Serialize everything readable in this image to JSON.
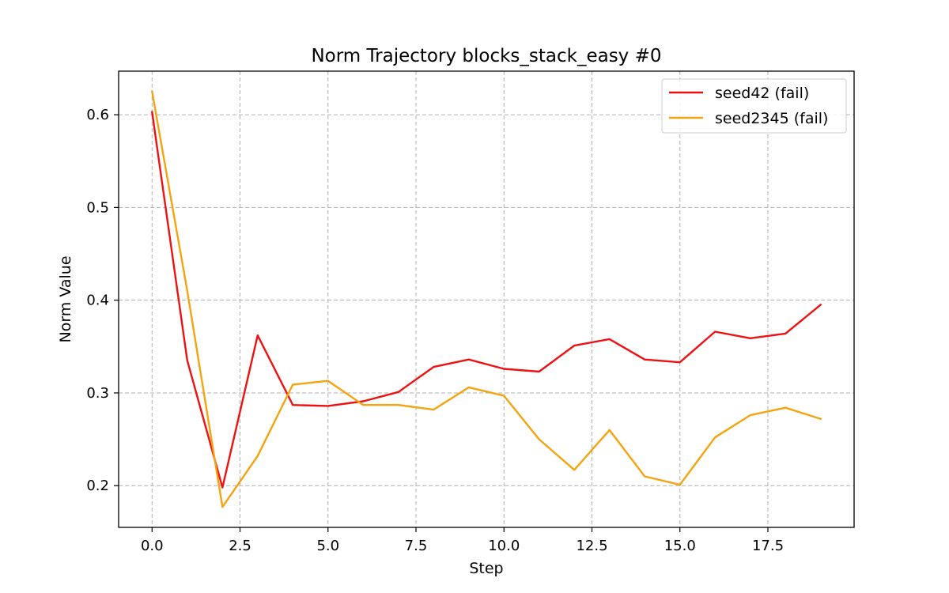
{
  "chart_data": {
    "type": "line",
    "title": "Norm Trajectory blocks_stack_easy #0",
    "xlabel": "Step",
    "ylabel": "Norm Value",
    "xlim": [
      -0.95,
      19.95
    ],
    "ylim": [
      0.155,
      0.647
    ],
    "xticks": [
      0.0,
      2.5,
      5.0,
      7.5,
      10.0,
      12.5,
      15.0,
      17.5
    ],
    "xtick_labels": [
      "0.0",
      "2.5",
      "5.0",
      "7.5",
      "10.0",
      "12.5",
      "15.0",
      "17.5"
    ],
    "yticks": [
      0.2,
      0.3,
      0.4,
      0.5,
      0.6
    ],
    "ytick_labels": [
      "0.2",
      "0.3",
      "0.4",
      "0.5",
      "0.6"
    ],
    "grid": true,
    "legend_position": "top-right",
    "x": [
      0,
      1,
      2,
      3,
      4,
      5,
      6,
      7,
      8,
      9,
      10,
      11,
      12,
      13,
      14,
      15,
      16,
      17,
      18,
      19
    ],
    "series": [
      {
        "name": "seed42 (fail)",
        "color": "#ee1111",
        "values": [
          0.603,
          0.335,
          0.198,
          0.362,
          0.287,
          0.286,
          0.291,
          0.301,
          0.328,
          0.336,
          0.326,
          0.323,
          0.351,
          0.358,
          0.336,
          0.333,
          0.366,
          0.359,
          0.364,
          0.395
        ]
      },
      {
        "name": "seed2345 (fail)",
        "color": "#f5a30f",
        "values": [
          0.625,
          0.41,
          0.177,
          0.232,
          0.309,
          0.313,
          0.287,
          0.287,
          0.282,
          0.306,
          0.297,
          0.25,
          0.217,
          0.26,
          0.21,
          0.201,
          0.252,
          0.276,
          0.284,
          0.272
        ]
      }
    ]
  }
}
